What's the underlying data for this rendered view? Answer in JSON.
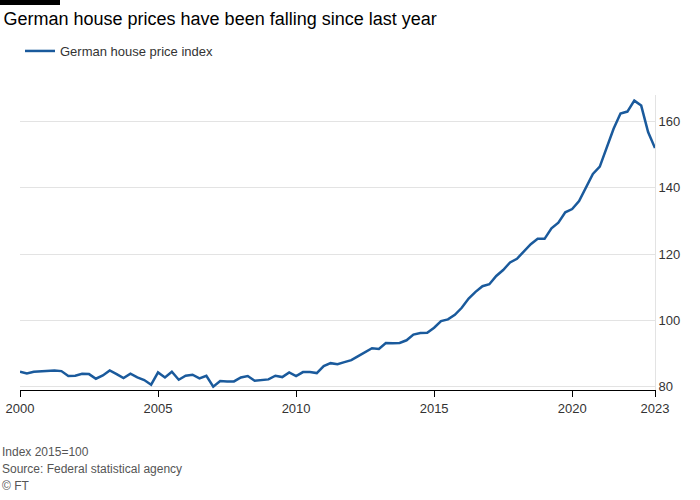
{
  "chart_data": {
    "type": "line",
    "title": "German house prices have been falling since last year",
    "notes": [
      "Index 2015=100",
      "Source: Federal statistical agency",
      "© FT"
    ],
    "legend": "top left",
    "grid": true,
    "xlim": [
      2000,
      2023
    ],
    "xticks": [
      2000,
      2005,
      2010,
      2015,
      2020,
      2023
    ],
    "ylim": [
      79,
      168
    ],
    "yticks": [
      80,
      100,
      120,
      140,
      160
    ],
    "x": [
      2000,
      2000.25,
      2000.5,
      2000.75,
      2001,
      2001.25,
      2001.5,
      2001.75,
      2002,
      2002.25,
      2002.5,
      2002.75,
      2003,
      2003.25,
      2003.5,
      2003.75,
      2004,
      2004.25,
      2004.5,
      2004.75,
      2005,
      2005.25,
      2005.5,
      2005.75,
      2006,
      2006.25,
      2006.5,
      2006.75,
      2007,
      2007.25,
      2007.5,
      2007.75,
      2008,
      2008.25,
      2008.5,
      2008.75,
      2009,
      2009.25,
      2009.5,
      2009.75,
      2010,
      2010.25,
      2010.5,
      2010.75,
      2011,
      2011.25,
      2011.5,
      2011.75,
      2012,
      2012.25,
      2012.5,
      2012.75,
      2013,
      2013.25,
      2013.5,
      2013.75,
      2014,
      2014.25,
      2014.5,
      2014.75,
      2015,
      2015.25,
      2015.5,
      2015.75,
      2016,
      2016.25,
      2016.5,
      2016.75,
      2017,
      2017.25,
      2017.5,
      2017.75,
      2018,
      2018.25,
      2018.5,
      2018.75,
      2019,
      2019.25,
      2019.5,
      2019.75,
      2020,
      2020.25,
      2020.5,
      2020.75,
      2021,
      2021.25,
      2021.5,
      2021.75,
      2022,
      2022.25,
      2022.5,
      2022.75,
      2023
    ],
    "series": [
      {
        "name": "German house price index",
        "color": "#1a5a9c",
        "line_style": "solid",
        "values": [
          84.5,
          84,
          84.5,
          84.7,
          84.8,
          84.9,
          84.7,
          83.2,
          83.3,
          83.9,
          83.8,
          82.4,
          83.4,
          84.9,
          83.8,
          82.6,
          83.9,
          82.8,
          82,
          80.6,
          84.3,
          82.8,
          84.5,
          82.1,
          83.3,
          83.6,
          82.5,
          83.3,
          80,
          81.7,
          81.6,
          81.6,
          82.8,
          83.2,
          81.8,
          82.1,
          82.2,
          83.3,
          82.9,
          84.3,
          83.2,
          84.4,
          84.4,
          84.1,
          86.2,
          87.1,
          86.8,
          87.4,
          88,
          89.2,
          90.5,
          91.6,
          91.4,
          93.2,
          93.1,
          93.2,
          94,
          95.7,
          96.2,
          96.3,
          97.8,
          99.8,
          100.3,
          101.7,
          103.8,
          106.6,
          108.6,
          110.3,
          110.9,
          113.4,
          115.2,
          117.5,
          118.6,
          120.7,
          123,
          124.6,
          124.6,
          127.8,
          129.5,
          132.6,
          133.6,
          136,
          140.1,
          144.2,
          146.4,
          152.2,
          157.8,
          162.4,
          163,
          166.3,
          164.8,
          156.8,
          152
        ]
      }
    ]
  }
}
